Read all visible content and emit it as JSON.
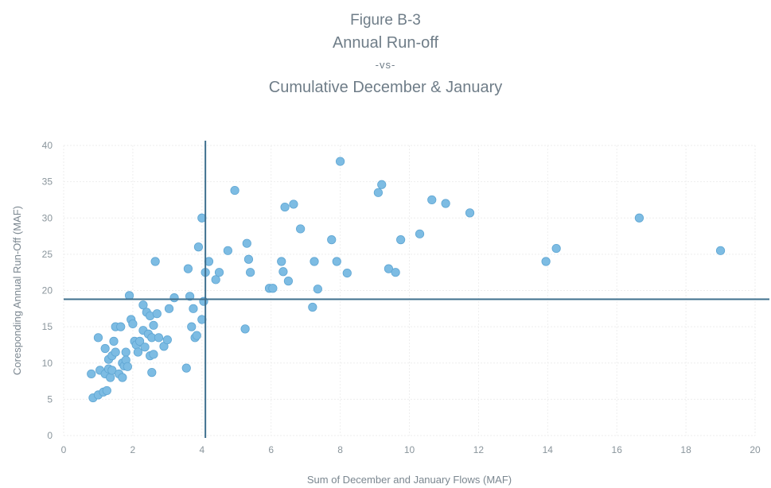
{
  "figure": {
    "label": "Figure B-3",
    "title_line1": "Annual Run-off",
    "title_line2": "-vs-",
    "title_line3": "Cumulative December & January"
  },
  "colors": {
    "point": "#7dbce3",
    "point_stroke": "#5fa6d3",
    "reference_line": "#3e6f8e",
    "grid": "#eeeeee",
    "axis_text": "#8a959c"
  },
  "chart_data": {
    "type": "scatter",
    "title": "Figure B-3 Annual Run-off -vs- Cumulative December & January",
    "xlabel": "Sum of December and January Flows (MAF)",
    "ylabel": "Coresponding Annual Run-Off (MAF)",
    "xlim": [
      0,
      20
    ],
    "ylim": [
      0,
      40
    ],
    "xticks": [
      0,
      2,
      4,
      6,
      8,
      10,
      12,
      14,
      16,
      18,
      20
    ],
    "yticks": [
      0,
      5,
      10,
      15,
      20,
      25,
      30,
      35,
      40
    ],
    "grid": true,
    "reference_lines": {
      "vertical_x": 4.1,
      "horizontal_y": 18.8
    },
    "points": [
      [
        0.8,
        8.5
      ],
      [
        0.85,
        5.2
      ],
      [
        1.0,
        13.5
      ],
      [
        1.0,
        5.6
      ],
      [
        1.05,
        9.0
      ],
      [
        1.15,
        6.0
      ],
      [
        1.2,
        12.0
      ],
      [
        1.2,
        8.5
      ],
      [
        1.25,
        6.2
      ],
      [
        1.3,
        10.5
      ],
      [
        1.3,
        9.2
      ],
      [
        1.35,
        8.0
      ],
      [
        1.4,
        11.0
      ],
      [
        1.4,
        9.0
      ],
      [
        1.45,
        13.0
      ],
      [
        1.5,
        15.0
      ],
      [
        1.5,
        11.5
      ],
      [
        1.6,
        8.5
      ],
      [
        1.65,
        15.0
      ],
      [
        1.7,
        10.0
      ],
      [
        1.7,
        8.0
      ],
      [
        1.75,
        9.6
      ],
      [
        1.8,
        11.5
      ],
      [
        1.8,
        10.4
      ],
      [
        1.85,
        9.5
      ],
      [
        1.9,
        19.3
      ],
      [
        1.95,
        16.0
      ],
      [
        2.0,
        15.4
      ],
      [
        2.05,
        13.0
      ],
      [
        2.1,
        12.5
      ],
      [
        2.15,
        11.5
      ],
      [
        2.2,
        13.0
      ],
      [
        2.3,
        18.0
      ],
      [
        2.3,
        14.5
      ],
      [
        2.35,
        12.2
      ],
      [
        2.4,
        17.0
      ],
      [
        2.45,
        14.0
      ],
      [
        2.5,
        16.5
      ],
      [
        2.5,
        11.0
      ],
      [
        2.55,
        13.5
      ],
      [
        2.55,
        8.7
      ],
      [
        2.6,
        15.2
      ],
      [
        2.6,
        11.2
      ],
      [
        2.65,
        24.0
      ],
      [
        2.7,
        16.8
      ],
      [
        2.75,
        13.5
      ],
      [
        2.9,
        12.3
      ],
      [
        3.0,
        13.2
      ],
      [
        3.05,
        17.5
      ],
      [
        3.2,
        19.0
      ],
      [
        3.55,
        9.3
      ],
      [
        3.6,
        23.0
      ],
      [
        3.65,
        19.2
      ],
      [
        3.7,
        15.0
      ],
      [
        3.75,
        17.5
      ],
      [
        3.8,
        13.5
      ],
      [
        3.85,
        13.8
      ],
      [
        3.9,
        26.0
      ],
      [
        4.0,
        30.0
      ],
      [
        4.05,
        18.5
      ],
      [
        4.0,
        16.0
      ],
      [
        4.1,
        22.5
      ],
      [
        4.2,
        24.0
      ],
      [
        4.4,
        21.5
      ],
      [
        4.5,
        22.5
      ],
      [
        4.75,
        25.5
      ],
      [
        4.95,
        33.8
      ],
      [
        5.25,
        14.7
      ],
      [
        5.3,
        26.5
      ],
      [
        5.35,
        24.3
      ],
      [
        5.4,
        22.5
      ],
      [
        5.95,
        20.3
      ],
      [
        6.05,
        20.3
      ],
      [
        6.3,
        24.0
      ],
      [
        6.35,
        22.6
      ],
      [
        6.4,
        31.5
      ],
      [
        6.5,
        21.3
      ],
      [
        6.65,
        31.9
      ],
      [
        6.85,
        28.5
      ],
      [
        7.2,
        17.7
      ],
      [
        7.25,
        24.0
      ],
      [
        7.35,
        20.2
      ],
      [
        7.75,
        27.0
      ],
      [
        7.9,
        24.0
      ],
      [
        8.0,
        37.8
      ],
      [
        8.2,
        22.4
      ],
      [
        9.1,
        33.5
      ],
      [
        9.2,
        34.6
      ],
      [
        9.4,
        23.0
      ],
      [
        9.6,
        22.5
      ],
      [
        9.75,
        27.0
      ],
      [
        10.3,
        27.8
      ],
      [
        10.65,
        32.5
      ],
      [
        11.05,
        32.0
      ],
      [
        11.75,
        30.7
      ],
      [
        13.95,
        24.0
      ],
      [
        14.25,
        25.8
      ],
      [
        16.65,
        30.0
      ],
      [
        19.0,
        25.5
      ]
    ]
  }
}
